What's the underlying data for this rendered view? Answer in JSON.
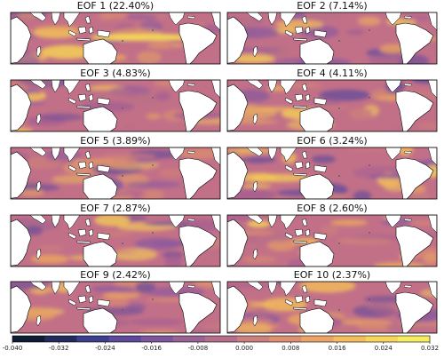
{
  "chart_data": {
    "type": "heatmap",
    "panels": [
      {
        "title": "EOF 1 (22.40%)",
        "variance_pct": 22.4
      },
      {
        "title": "EOF 2 (7.14%)",
        "variance_pct": 7.14
      },
      {
        "title": "EOF 3 (4.83%)",
        "variance_pct": 4.83
      },
      {
        "title": "EOF 4 (4.11%)",
        "variance_pct": 4.11
      },
      {
        "title": "EOF 5 (3.89%)",
        "variance_pct": 3.89
      },
      {
        "title": "EOF 6 (3.24%)",
        "variance_pct": 3.24
      },
      {
        "title": "EOF 7 (2.87%)",
        "variance_pct": 2.87
      },
      {
        "title": "EOF 8 (2.60%)",
        "variance_pct": 2.6
      },
      {
        "title": "EOF 9 (2.42%)",
        "variance_pct": 2.42
      },
      {
        "title": "EOF 10 (2.37%)",
        "variance_pct": 2.37
      }
    ],
    "colorbar": {
      "range": [
        -0.04,
        0.032
      ],
      "ticks": [
        "-0.040",
        "-0.032",
        "-0.024",
        "-0.016",
        "-0.008",
        "0.000",
        "0.008",
        "0.016",
        "0.024",
        "0.032"
      ],
      "colors": [
        "#0d1b33",
        "#232a5e",
        "#3b3f8c",
        "#5d4a9b",
        "#7d569d",
        "#9a6295",
        "#b56f8a",
        "#cc7f7e",
        "#de9070",
        "#eca566",
        "#f5bd5c",
        "#f8d65a",
        "#f5ee60"
      ]
    },
    "layout": "5 rows x 2 columns of tropical ocean maps with a shared horizontal colorbar",
    "ocean_base_color": "#c27088",
    "land_color": "#ffffff"
  }
}
